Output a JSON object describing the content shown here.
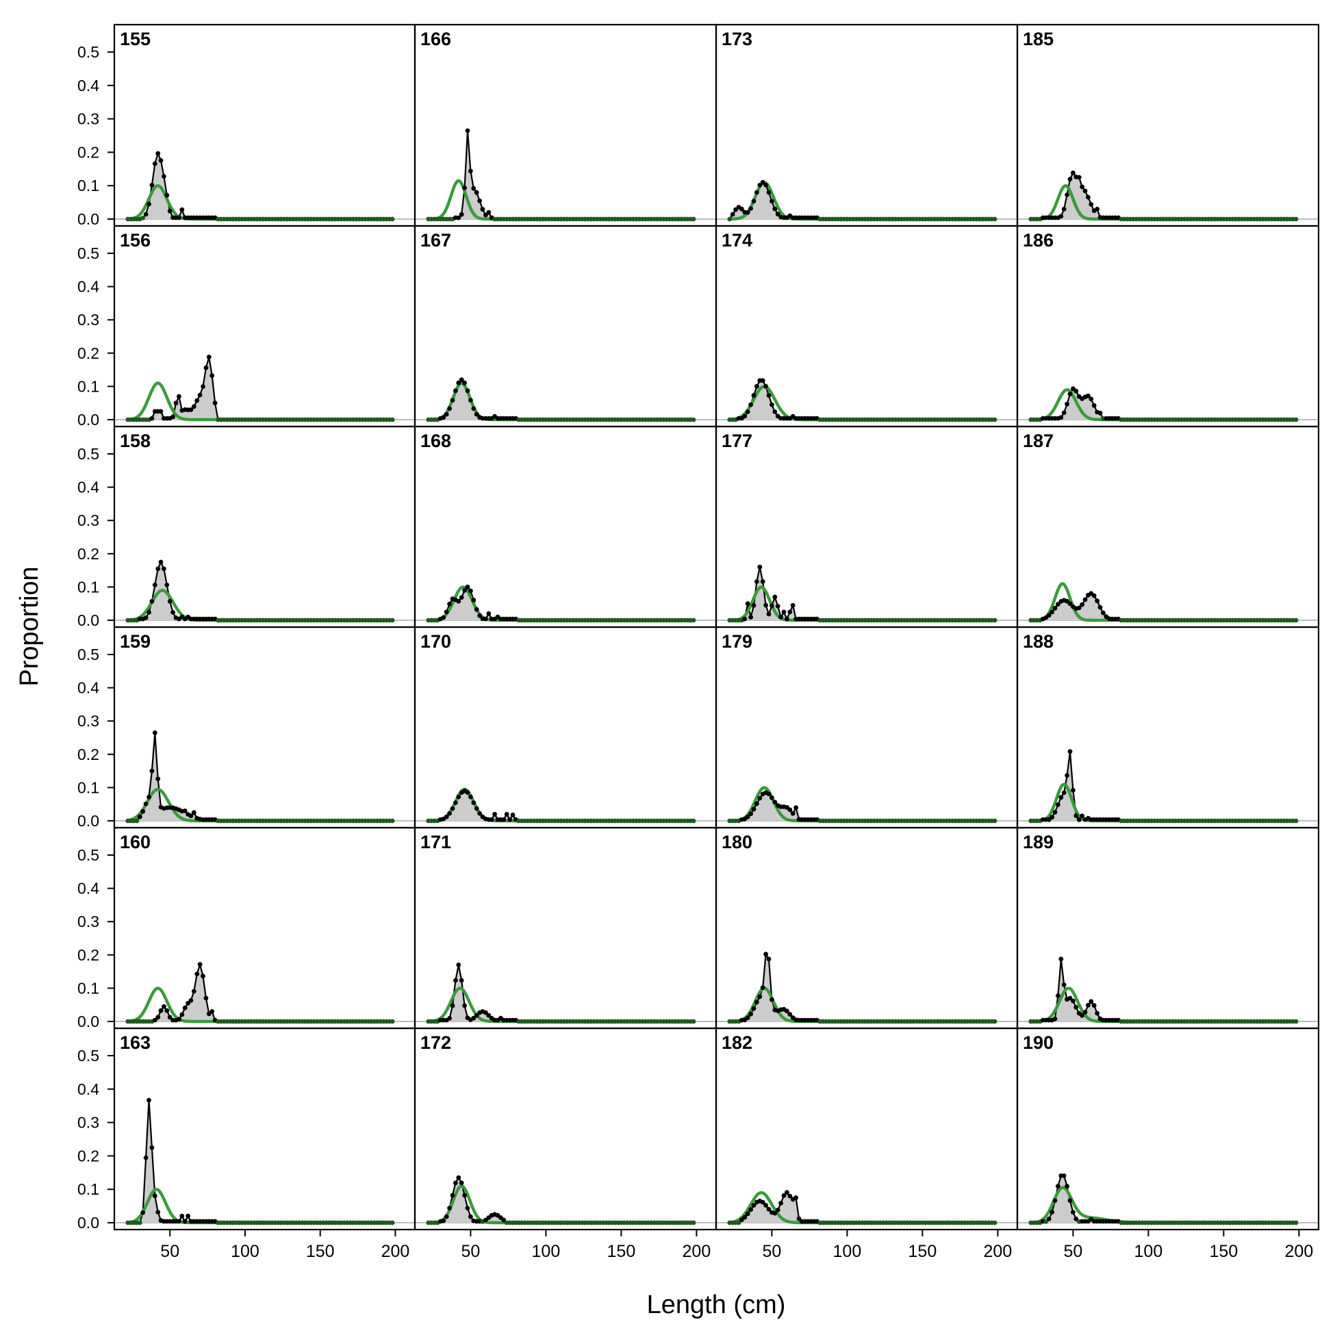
{
  "figure": {
    "xlabel": "Length (cm)",
    "ylabel": "Proportion",
    "xticks": [
      50,
      100,
      150,
      200
    ],
    "yticks": [
      "0.0",
      "0.1",
      "0.2",
      "0.3",
      "0.4",
      "0.5"
    ],
    "colors": {
      "observed_fill": "#cccccc",
      "observed_line": "#000000",
      "expected_line": "#3a9a3a",
      "zero_line": "#bdbdbd",
      "expected_point": "#1f5a1f"
    }
  },
  "chart_data": [
    {
      "panel": "155",
      "type": "area",
      "xlim": [
        13,
        213
      ],
      "ylim": [
        0,
        0.57
      ],
      "x_min": 22,
      "x_max": 198,
      "x_step": 2,
      "observed_peaks": [
        {
          "x": 42,
          "y": 0.195,
          "w": 3.5
        },
        {
          "x": 47,
          "y": 0.03,
          "w": 2
        }
      ],
      "observed_extra": [
        {
          "x": 58,
          "y": 0.028
        }
      ],
      "expected_peaks": [
        {
          "x": 42,
          "y": 0.1,
          "w": 6
        }
      ],
      "observed_range": [
        32,
        80
      ]
    },
    {
      "panel": "156",
      "type": "area",
      "xlim": [
        13,
        213
      ],
      "ylim": [
        0,
        0.57
      ],
      "x_min": 22,
      "x_max": 198,
      "x_step": 2,
      "observed_peaks": [
        {
          "x": 76,
          "y": 0.18,
          "w": 2.5
        },
        {
          "x": 70,
          "y": 0.06,
          "w": 3
        },
        {
          "x": 60,
          "y": 0.03,
          "w": 5
        }
      ],
      "observed_extra": [
        {
          "x": 40,
          "y": 0.025
        },
        {
          "x": 42,
          "y": 0.025
        },
        {
          "x": 44,
          "y": 0.025
        },
        {
          "x": 54,
          "y": 0.05
        },
        {
          "x": 56,
          "y": 0.07
        }
      ],
      "expected_peaks": [
        {
          "x": 42,
          "y": 0.11,
          "w": 6
        }
      ],
      "observed_range": [
        38,
        80
      ]
    },
    {
      "panel": "158",
      "type": "area",
      "xlim": [
        13,
        213
      ],
      "ylim": [
        0,
        0.57
      ],
      "x_min": 22,
      "x_max": 198,
      "x_step": 2,
      "observed_peaks": [
        {
          "x": 44,
          "y": 0.175,
          "w": 4
        }
      ],
      "observed_extra": [
        {
          "x": 58,
          "y": 0.01
        },
        {
          "x": 62,
          "y": 0.01
        }
      ],
      "expected_peaks": [
        {
          "x": 45,
          "y": 0.09,
          "w": 7
        }
      ],
      "observed_range": [
        30,
        80
      ]
    },
    {
      "panel": "159",
      "type": "area",
      "xlim": [
        13,
        213
      ],
      "ylim": [
        0,
        0.57
      ],
      "x_min": 22,
      "x_max": 198,
      "x_step": 2,
      "observed_peaks": [
        {
          "x": 40,
          "y": 0.22,
          "w": 1.5
        },
        {
          "x": 36,
          "y": 0.05,
          "w": 3
        },
        {
          "x": 50,
          "y": 0.04,
          "w": 10
        }
      ],
      "observed_extra": [
        {
          "x": 60,
          "y": 0.03
        },
        {
          "x": 66,
          "y": 0.025
        }
      ],
      "expected_peaks": [
        {
          "x": 42,
          "y": 0.095,
          "w": 7
        }
      ],
      "observed_range": [
        30,
        80
      ]
    },
    {
      "panel": "160",
      "type": "area",
      "xlim": [
        13,
        213
      ],
      "ylim": [
        0,
        0.57
      ],
      "x_min": 22,
      "x_max": 198,
      "x_step": 2,
      "observed_peaks": [
        {
          "x": 70,
          "y": 0.17,
          "w": 3
        },
        {
          "x": 62,
          "y": 0.05,
          "w": 3
        },
        {
          "x": 46,
          "y": 0.045,
          "w": 2.5
        }
      ],
      "observed_extra": [
        {
          "x": 78,
          "y": 0.03
        }
      ],
      "expected_peaks": [
        {
          "x": 42,
          "y": 0.1,
          "w": 6
        }
      ],
      "observed_range": [
        40,
        80
      ]
    },
    {
      "panel": "163",
      "type": "area",
      "xlim": [
        13,
        213
      ],
      "ylim": [
        0,
        0.57
      ],
      "x_min": 22,
      "x_max": 198,
      "x_step": 2,
      "observed_peaks": [
        {
          "x": 36,
          "y": 0.36,
          "w": 1.8
        },
        {
          "x": 40,
          "y": 0.05,
          "w": 2
        }
      ],
      "observed_extra": [
        {
          "x": 58,
          "y": 0.02
        },
        {
          "x": 62,
          "y": 0.02
        }
      ],
      "expected_peaks": [
        {
          "x": 41,
          "y": 0.1,
          "w": 6
        }
      ],
      "observed_range": [
        32,
        80
      ]
    },
    {
      "panel": "166",
      "type": "area",
      "xlim": [
        13,
        213
      ],
      "ylim": [
        0,
        0.57
      ],
      "x_min": 22,
      "x_max": 198,
      "x_step": 2,
      "observed_peaks": [
        {
          "x": 48,
          "y": 0.21,
          "w": 1.3
        },
        {
          "x": 52,
          "y": 0.09,
          "w": 4
        }
      ],
      "observed_extra": [
        {
          "x": 62,
          "y": 0.02
        }
      ],
      "expected_peaks": [
        {
          "x": 42,
          "y": 0.115,
          "w": 5
        }
      ],
      "observed_range": [
        40,
        64
      ]
    },
    {
      "panel": "167",
      "type": "area",
      "xlim": [
        13,
        213
      ],
      "ylim": [
        0,
        0.57
      ],
      "x_min": 22,
      "x_max": 198,
      "x_step": 2,
      "observed_peaks": [
        {
          "x": 44,
          "y": 0.12,
          "w": 5
        }
      ],
      "observed_extra": [
        {
          "x": 66,
          "y": 0.01
        }
      ],
      "expected_peaks": [
        {
          "x": 44,
          "y": 0.11,
          "w": 5.5
        }
      ],
      "observed_range": [
        30,
        80
      ]
    },
    {
      "panel": "168",
      "type": "area",
      "xlim": [
        13,
        213
      ],
      "ylim": [
        0,
        0.57
      ],
      "x_min": 22,
      "x_max": 198,
      "x_step": 2,
      "observed_peaks": [
        {
          "x": 48,
          "y": 0.1,
          "w": 4
        },
        {
          "x": 38,
          "y": 0.06,
          "w": 3
        }
      ],
      "observed_extra": [
        {
          "x": 62,
          "y": 0.02
        },
        {
          "x": 68,
          "y": 0.01
        }
      ],
      "expected_peaks": [
        {
          "x": 45,
          "y": 0.1,
          "w": 6
        }
      ],
      "observed_range": [
        30,
        80
      ]
    },
    {
      "panel": "170",
      "type": "area",
      "xlim": [
        13,
        213
      ],
      "ylim": [
        0,
        0.57
      ],
      "x_min": 22,
      "x_max": 198,
      "x_step": 2,
      "observed_peaks": [
        {
          "x": 46,
          "y": 0.09,
          "w": 6
        }
      ],
      "observed_extra": [
        {
          "x": 66,
          "y": 0.02
        },
        {
          "x": 74,
          "y": 0.02
        },
        {
          "x": 78,
          "y": 0.018
        }
      ],
      "expected_peaks": [
        {
          "x": 46,
          "y": 0.095,
          "w": 6
        }
      ],
      "observed_range": [
        30,
        80
      ]
    },
    {
      "panel": "171",
      "type": "area",
      "xlim": [
        13,
        213
      ],
      "ylim": [
        0,
        0.57
      ],
      "x_min": 22,
      "x_max": 198,
      "x_step": 2,
      "observed_peaks": [
        {
          "x": 42,
          "y": 0.17,
          "w": 2.5
        },
        {
          "x": 58,
          "y": 0.03,
          "w": 4
        }
      ],
      "observed_extra": [
        {
          "x": 70,
          "y": 0.01
        }
      ],
      "expected_peaks": [
        {
          "x": 43,
          "y": 0.1,
          "w": 6
        }
      ],
      "observed_range": [
        30,
        80
      ]
    },
    {
      "panel": "172",
      "type": "area",
      "xlim": [
        13,
        213
      ],
      "ylim": [
        0,
        0.57
      ],
      "x_min": 22,
      "x_max": 198,
      "x_step": 2,
      "observed_peaks": [
        {
          "x": 42,
          "y": 0.135,
          "w": 4
        },
        {
          "x": 66,
          "y": 0.025,
          "w": 4
        }
      ],
      "observed_extra": [],
      "expected_peaks": [
        {
          "x": 44,
          "y": 0.11,
          "w": 5.5
        }
      ],
      "observed_range": [
        30,
        72
      ]
    },
    {
      "panel": "173",
      "type": "area",
      "xlim": [
        13,
        213
      ],
      "ylim": [
        0,
        0.57
      ],
      "x_min": 22,
      "x_max": 198,
      "x_step": 2,
      "observed_peaks": [
        {
          "x": 44,
          "y": 0.11,
          "w": 5
        },
        {
          "x": 28,
          "y": 0.035,
          "w": 3
        }
      ],
      "observed_extra": [
        {
          "x": 62,
          "y": 0.01
        }
      ],
      "expected_peaks": [
        {
          "x": 45,
          "y": 0.11,
          "w": 6
        }
      ],
      "observed_range": [
        24,
        80
      ]
    },
    {
      "panel": "174",
      "type": "area",
      "xlim": [
        13,
        213
      ],
      "ylim": [
        0,
        0.57
      ],
      "x_min": 22,
      "x_max": 198,
      "x_step": 2,
      "observed_peaks": [
        {
          "x": 43,
          "y": 0.12,
          "w": 5
        }
      ],
      "observed_extra": [
        {
          "x": 64,
          "y": 0.01
        }
      ],
      "expected_peaks": [
        {
          "x": 45,
          "y": 0.1,
          "w": 7
        }
      ],
      "observed_range": [
        28,
        80
      ]
    },
    {
      "panel": "177",
      "type": "area",
      "xlim": [
        13,
        213
      ],
      "ylim": [
        0,
        0.57
      ],
      "x_min": 22,
      "x_max": 198,
      "x_step": 2,
      "observed_peaks": [
        {
          "x": 42,
          "y": 0.16,
          "w": 2.5
        },
        {
          "x": 52,
          "y": 0.07,
          "w": 2
        }
      ],
      "observed_extra": [
        {
          "x": 34,
          "y": 0.05
        },
        {
          "x": 58,
          "y": 0.025
        },
        {
          "x": 62,
          "y": 0.025
        },
        {
          "x": 64,
          "y": 0.045
        }
      ],
      "expected_peaks": [
        {
          "x": 43,
          "y": 0.1,
          "w": 5.5
        }
      ],
      "observed_range": [
        32,
        80
      ]
    },
    {
      "panel": "179",
      "type": "area",
      "xlim": [
        13,
        213
      ],
      "ylim": [
        0,
        0.57
      ],
      "x_min": 22,
      "x_max": 198,
      "x_step": 2,
      "observed_peaks": [
        {
          "x": 46,
          "y": 0.085,
          "w": 6
        },
        {
          "x": 60,
          "y": 0.035,
          "w": 4
        }
      ],
      "observed_extra": [
        {
          "x": 66,
          "y": 0.04
        }
      ],
      "expected_peaks": [
        {
          "x": 45,
          "y": 0.1,
          "w": 6
        }
      ],
      "observed_range": [
        30,
        80
      ]
    },
    {
      "panel": "180",
      "type": "area",
      "xlim": [
        13,
        213
      ],
      "ylim": [
        0,
        0.57
      ],
      "x_min": 22,
      "x_max": 198,
      "x_step": 2,
      "observed_peaks": [
        {
          "x": 47,
          "y": 0.16,
          "w": 1.5
        },
        {
          "x": 44,
          "y": 0.08,
          "w": 5
        },
        {
          "x": 58,
          "y": 0.035,
          "w": 4
        }
      ],
      "observed_extra": [],
      "expected_peaks": [
        {
          "x": 45,
          "y": 0.1,
          "w": 6
        }
      ],
      "observed_range": [
        30,
        80
      ]
    },
    {
      "panel": "182",
      "type": "area",
      "xlim": [
        13,
        213
      ],
      "ylim": [
        0,
        0.57
      ],
      "x_min": 22,
      "x_max": 198,
      "x_step": 2,
      "observed_peaks": [
        {
          "x": 60,
          "y": 0.09,
          "w": 4
        },
        {
          "x": 42,
          "y": 0.065,
          "w": 6
        }
      ],
      "observed_extra": [
        {
          "x": 64,
          "y": 0.07
        },
        {
          "x": 66,
          "y": 0.075
        }
      ],
      "expected_peaks": [
        {
          "x": 43,
          "y": 0.09,
          "w": 7
        }
      ],
      "observed_range": [
        30,
        80
      ]
    },
    {
      "panel": "185",
      "type": "area",
      "xlim": [
        13,
        213
      ],
      "ylim": [
        0,
        0.57
      ],
      "x_min": 22,
      "x_max": 198,
      "x_step": 2,
      "observed_peaks": [
        {
          "x": 49,
          "y": 0.1,
          "w": 3
        },
        {
          "x": 56,
          "y": 0.09,
          "w": 5
        }
      ],
      "observed_extra": [
        {
          "x": 54,
          "y": 0.125
        },
        {
          "x": 66,
          "y": 0.03
        }
      ],
      "expected_peaks": [
        {
          "x": 45,
          "y": 0.1,
          "w": 5
        }
      ],
      "observed_range": [
        30,
        80
      ]
    },
    {
      "panel": "186",
      "type": "area",
      "xlim": [
        13,
        213
      ],
      "ylim": [
        0,
        0.57
      ],
      "x_min": 22,
      "x_max": 198,
      "x_step": 2,
      "observed_peaks": [
        {
          "x": 50,
          "y": 0.09,
          "w": 3.5
        },
        {
          "x": 60,
          "y": 0.07,
          "w": 4
        }
      ],
      "observed_extra": [
        {
          "x": 68,
          "y": 0.02
        }
      ],
      "expected_peaks": [
        {
          "x": 46,
          "y": 0.09,
          "w": 6
        }
      ],
      "observed_range": [
        30,
        80
      ]
    },
    {
      "panel": "187",
      "type": "area",
      "xlim": [
        13,
        213
      ],
      "ylim": [
        0,
        0.57
      ],
      "x_min": 22,
      "x_max": 198,
      "x_step": 2,
      "observed_peaks": [
        {
          "x": 44,
          "y": 0.06,
          "w": 6
        },
        {
          "x": 62,
          "y": 0.08,
          "w": 5
        }
      ],
      "observed_extra": [],
      "expected_peaks": [
        {
          "x": 43,
          "y": 0.11,
          "w": 5
        }
      ],
      "observed_range": [
        30,
        80
      ]
    },
    {
      "panel": "188",
      "type": "area",
      "xlim": [
        13,
        213
      ],
      "ylim": [
        0,
        0.57
      ],
      "x_min": 22,
      "x_max": 198,
      "x_step": 2,
      "observed_peaks": [
        {
          "x": 48,
          "y": 0.16,
          "w": 1.5
        },
        {
          "x": 44,
          "y": 0.08,
          "w": 4
        }
      ],
      "observed_extra": [
        {
          "x": 56,
          "y": 0.015
        },
        {
          "x": 60,
          "y": 0.008
        }
      ],
      "expected_peaks": [
        {
          "x": 44,
          "y": 0.11,
          "w": 5
        }
      ],
      "observed_range": [
        30,
        80
      ]
    },
    {
      "panel": "189",
      "type": "area",
      "xlim": [
        13,
        213
      ],
      "ylim": [
        0,
        0.57
      ],
      "x_min": 22,
      "x_max": 198,
      "x_step": 2,
      "observed_peaks": [
        {
          "x": 42,
          "y": 0.165,
          "w": 1.5
        },
        {
          "x": 48,
          "y": 0.07,
          "w": 4
        },
        {
          "x": 62,
          "y": 0.06,
          "w": 3
        }
      ],
      "observed_extra": [],
      "expected_peaks": [
        {
          "x": 47,
          "y": 0.1,
          "w": 6
        }
      ],
      "observed_range": [
        30,
        80
      ]
    },
    {
      "panel": "190",
      "type": "area",
      "xlim": [
        13,
        213
      ],
      "ylim": [
        0,
        0.57
      ],
      "x_min": 22,
      "x_max": 198,
      "x_step": 2,
      "observed_peaks": [
        {
          "x": 43,
          "y": 0.145,
          "w": 4
        }
      ],
      "observed_extra": [
        {
          "x": 62,
          "y": 0.01
        }
      ],
      "expected_peaks": [
        {
          "x": 43,
          "y": 0.1,
          "w": 6
        },
        {
          "x": 60,
          "y": 0.015,
          "w": 12
        }
      ],
      "observed_range": [
        30,
        80
      ]
    }
  ]
}
